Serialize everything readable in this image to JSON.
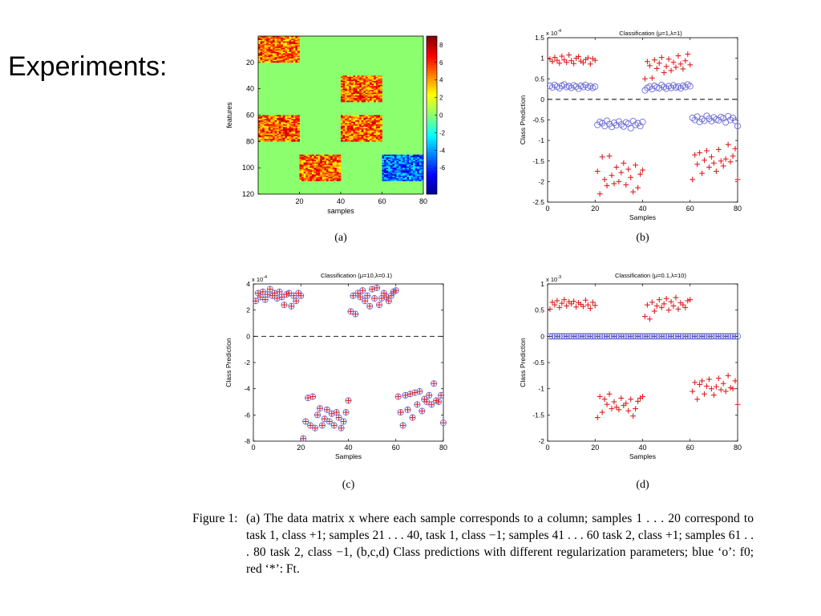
{
  "slide": {
    "title": "Experiments:"
  },
  "figure": {
    "caption_label": "Figure 1:",
    "caption_text": "(a) The data matrix x where each sample corresponds to a column; samples 1 . . . 20 correspond to task 1, class +1; samples 21 . . . 40, task 1, class −1; samples 41 . . . 60 task 2, class +1; samples 61 . . . 80 task 2, class −1, (b,c,d) Class predictions with different regularization parameters; blue ‘o’: f0; red ‘*’: Ft."
  },
  "chart_data": [
    {
      "type": "heatmap",
      "panel_label": "(a)",
      "title": "",
      "xlabel": "samples",
      "ylabel": "features",
      "xlim": [
        0,
        80
      ],
      "ylim": [
        120,
        0
      ],
      "xticks": [
        20,
        40,
        60,
        80
      ],
      "yticks": [
        20,
        40,
        60,
        80,
        100,
        120
      ],
      "colorbar": {
        "ticks": [
          8,
          6,
          4,
          2,
          0,
          -2,
          -4,
          -6
        ],
        "range": [
          -9,
          9
        ]
      },
      "background_value": 0,
      "blocks": [
        {
          "samples": [
            1,
            20
          ],
          "features": [
            1,
            20
          ],
          "mean": 5
        },
        {
          "samples": [
            41,
            60
          ],
          "features": [
            31,
            50
          ],
          "mean": 5
        },
        {
          "samples": [
            1,
            20
          ],
          "features": [
            61,
            80
          ],
          "mean": 5
        },
        {
          "samples": [
            41,
            60
          ],
          "features": [
            61,
            80
          ],
          "mean": 5
        },
        {
          "samples": [
            21,
            40
          ],
          "features": [
            91,
            110
          ],
          "mean": 5
        },
        {
          "samples": [
            61,
            80
          ],
          "features": [
            91,
            110
          ],
          "mean": -5
        }
      ]
    },
    {
      "type": "scatter",
      "panel_label": "(b)",
      "title": "Classification (μ=1,λ=1)",
      "exponent": "x 10",
      "exponent_power": "-4",
      "xlabel": "Samples",
      "ylabel": "Class Prediction",
      "xlim": [
        0,
        80
      ],
      "ylim": [
        -2.5,
        1.5
      ],
      "xticks": [
        0,
        20,
        40,
        60,
        80
      ],
      "yticks": [
        1.5,
        1,
        0.5,
        0,
        -0.5,
        -1,
        -1.5,
        -2,
        -2.5
      ],
      "ytick_labels": [
        "1.5",
        "1",
        "0.5",
        "0",
        "-0.5",
        "-1",
        "-1.5",
        "-2",
        "-2.5"
      ],
      "series": [
        {
          "marker": "o",
          "color": "#6b6bd6",
          "values": [
            0.33,
            0.29,
            0.35,
            0.31,
            0.27,
            0.33,
            0.36,
            0.3,
            0.32,
            0.28,
            0.34,
            0.31,
            0.26,
            0.33,
            0.3,
            0.35,
            0.29,
            0.32,
            0.28,
            0.31,
            -0.62,
            -0.55,
            -0.58,
            -0.65,
            -0.52,
            -0.6,
            -0.67,
            -0.57,
            -0.63,
            -0.54,
            -0.61,
            -0.66,
            -0.56,
            -0.59,
            -0.7,
            -0.53,
            -0.62,
            -0.58,
            -0.65,
            -0.55,
            0.22,
            0.28,
            0.31,
            0.25,
            0.33,
            0.29,
            0.27,
            0.35,
            0.3,
            0.26,
            0.32,
            0.28,
            0.34,
            0.29,
            0.31,
            0.27,
            0.33,
            0.3,
            0.36,
            0.32,
            -0.45,
            -0.5,
            -0.42,
            -0.55,
            -0.48,
            -0.52,
            -0.4,
            -0.47,
            -0.53,
            -0.44,
            -0.49,
            -0.51,
            -0.43,
            -0.46,
            -0.56,
            -0.41,
            -0.5,
            -0.45,
            -0.52,
            -0.65
          ]
        },
        {
          "marker": "+",
          "color": "#e02020",
          "values": [
            0.98,
            0.92,
            1.02,
            0.95,
            0.88,
            1.05,
            0.96,
            0.9,
            1.08,
            0.94,
            0.87,
            1.0,
            1.04,
            0.93,
            0.89,
            0.97,
            1.01,
            0.86,
            0.99,
            0.95,
            -1.75,
            -2.3,
            -1.4,
            -1.95,
            -2.1,
            -1.38,
            -1.85,
            -2.05,
            -1.65,
            -2.0,
            -1.78,
            -1.55,
            -2.08,
            -1.7,
            -1.9,
            -2.25,
            -1.6,
            -2.15,
            -1.82,
            -1.72,
            0.5,
            0.92,
            0.82,
            0.52,
            0.96,
            0.75,
            0.88,
            1.02,
            0.65,
            0.8,
            0.98,
            0.7,
            0.9,
            0.78,
            1.06,
            0.86,
            0.74,
            0.94,
            1.1,
            0.84,
            -1.95,
            -1.35,
            -1.58,
            -1.3,
            -1.8,
            -1.48,
            -1.25,
            -1.65,
            -1.4,
            -1.55,
            -1.75,
            -1.22,
            -1.5,
            -1.62,
            -1.45,
            -1.1,
            -1.52,
            -1.38,
            -1.2,
            -1.95
          ]
        }
      ]
    },
    {
      "type": "scatter",
      "panel_label": "(c)",
      "title": "Classification (μ=10,λ=0.1)",
      "exponent": "x 10",
      "exponent_power": "-4",
      "xlabel": "Samples",
      "ylabel": "Class Prediction",
      "xlim": [
        0,
        80
      ],
      "ylim": [
        -8,
        4
      ],
      "xticks": [
        0,
        20,
        40,
        60,
        80
      ],
      "yticks": [
        4,
        2,
        0,
        -2,
        -4,
        -6,
        -8
      ],
      "ytick_labels": [
        "4",
        "2",
        "0",
        "-2",
        "-4",
        "-6",
        "-8"
      ],
      "series": [
        {
          "marker": "o",
          "color": "#6b6bd6",
          "values": [
            2.7,
            3.3,
            3.0,
            3.4,
            2.8,
            3.2,
            3.6,
            3.1,
            3.3,
            2.9,
            3.4,
            3.0,
            2.4,
            3.2,
            3.3,
            2.3,
            3.1,
            2.7,
            3.3,
            3.1,
            -7.8,
            -6.5,
            -4.7,
            -6.8,
            -4.6,
            -7.0,
            -6.0,
            -5.5,
            -6.8,
            -6.3,
            -5.6,
            -6.5,
            -5.9,
            -6.8,
            -5.8,
            -6.2,
            -7.0,
            -6.5,
            -5.8,
            -4.9,
            1.9,
            3.1,
            1.7,
            3.3,
            3.0,
            3.5,
            2.7,
            3.1,
            2.3,
            3.6,
            2.9,
            3.7,
            2.4,
            2.9,
            3.3,
            3.0,
            2.7,
            3.1,
            3.4,
            3.5,
            -4.6,
            -5.8,
            -6.8,
            -4.5,
            -5.6,
            -4.4,
            -6.2,
            -4.3,
            -5.2,
            -4.2,
            -5.7,
            -4.8,
            -5.0,
            -4.5,
            -5.2,
            -3.6,
            -4.9,
            -5.0,
            -4.5,
            -6.6
          ]
        },
        {
          "marker": "+",
          "color": "#e02020",
          "values": [
            2.7,
            3.3,
            3.0,
            3.4,
            2.8,
            3.2,
            3.6,
            3.1,
            3.3,
            2.9,
            3.4,
            3.0,
            2.4,
            3.2,
            3.3,
            2.3,
            3.1,
            2.7,
            3.3,
            3.1,
            -7.8,
            -6.5,
            -4.7,
            -6.8,
            -4.6,
            -7.0,
            -6.0,
            -5.5,
            -6.8,
            -6.3,
            -5.6,
            -6.5,
            -5.9,
            -6.8,
            -5.8,
            -6.2,
            -7.0,
            -6.5,
            -5.8,
            -4.9,
            1.9,
            3.1,
            1.7,
            3.3,
            3.0,
            3.5,
            2.7,
            3.1,
            2.3,
            3.6,
            2.9,
            3.7,
            2.4,
            2.9,
            3.3,
            3.0,
            2.7,
            3.1,
            3.4,
            3.5,
            -4.6,
            -5.8,
            -6.8,
            -4.5,
            -5.6,
            -4.4,
            -6.2,
            -4.3,
            -5.2,
            -4.2,
            -5.7,
            -4.8,
            -5.0,
            -4.5,
            -5.2,
            -3.6,
            -4.9,
            -5.0,
            -4.5,
            -6.6
          ]
        }
      ]
    },
    {
      "type": "scatter",
      "panel_label": "(d)",
      "title": "Classification (μ=0.1,λ=10)",
      "exponent": "x 10",
      "exponent_power": "-3",
      "xlabel": "Samples",
      "ylabel": "Class Prediction",
      "xlim": [
        0,
        80
      ],
      "ylim": [
        -2,
        1
      ],
      "xticks": [
        0,
        20,
        40,
        60,
        80
      ],
      "yticks": [
        1,
        0.5,
        0,
        -0.5,
        -1,
        -1.5,
        -2
      ],
      "ytick_labels": [
        "1",
        "0.5",
        "0",
        "-0.5",
        "-1",
        "-1.5",
        "-2"
      ],
      "series": [
        {
          "marker": "o",
          "color": "#6b6bd6",
          "values": [
            0,
            0,
            0,
            0,
            0,
            0,
            0,
            0,
            0,
            0,
            0,
            0,
            0,
            0,
            0,
            0,
            0,
            0,
            0,
            0,
            0,
            0,
            0,
            0,
            0,
            0,
            0,
            0,
            0,
            0,
            0,
            0,
            0,
            0,
            0,
            0,
            0,
            0,
            0,
            0,
            0,
            0,
            0,
            0,
            0,
            0,
            0,
            0,
            0,
            0,
            0,
            0,
            0,
            0,
            0,
            0,
            0,
            0,
            0,
            0,
            0,
            0,
            0,
            0,
            0,
            0,
            0,
            0,
            0,
            0,
            0,
            0,
            0,
            0,
            0,
            0,
            0,
            0,
            0,
            0
          ]
        },
        {
          "marker": "+",
          "color": "#e02020",
          "values": [
            0.52,
            0.65,
            0.6,
            0.68,
            0.55,
            0.63,
            0.7,
            0.58,
            0.66,
            0.62,
            0.67,
            0.56,
            0.64,
            0.61,
            0.57,
            0.69,
            0.6,
            0.53,
            0.65,
            0.59,
            -1.55,
            -1.15,
            -1.45,
            -1.2,
            -1.3,
            -1.1,
            -1.38,
            -1.25,
            -1.35,
            -1.4,
            -1.18,
            -1.32,
            -1.28,
            -1.42,
            -1.2,
            -1.52,
            -1.38,
            -1.24,
            -1.18,
            -1.15,
            0.38,
            0.6,
            0.33,
            0.65,
            0.48,
            0.58,
            0.7,
            0.55,
            0.62,
            0.72,
            0.5,
            0.66,
            0.58,
            0.74,
            0.52,
            0.64,
            0.6,
            0.55,
            0.68,
            0.7,
            -1.05,
            -0.88,
            -1.2,
            -0.92,
            -0.85,
            -1.1,
            -0.95,
            -0.82,
            -1.0,
            -1.12,
            -0.96,
            -0.8,
            -1.02,
            -0.9,
            -1.05,
            -0.75,
            -0.98,
            -1.0,
            -0.85,
            -1.3
          ]
        }
      ]
    }
  ]
}
